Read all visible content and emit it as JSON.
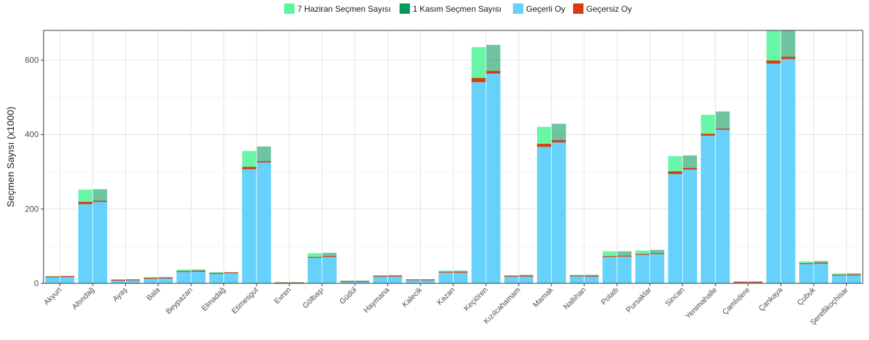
{
  "chart_data": {
    "type": "bar",
    "title": "",
    "xlabel": "",
    "ylabel": "Seçmen Sayısı (x1000)",
    "ylim": [
      0,
      680
    ],
    "yticks": [
      0,
      200,
      400,
      600
    ],
    "grid": true,
    "legend_position": "top",
    "legend": [
      {
        "label": "7 Haziran Seçmen Sayısı",
        "color": "#5cf5a0"
      },
      {
        "label": "1 Kasım Seçmen Sayısı",
        "color": "#059a5a"
      },
      {
        "label": "Geçerli Oy",
        "color": "#66d2fb"
      },
      {
        "label": "Geçersiz Oy",
        "color": "#d93b0f"
      }
    ],
    "categories": [
      "Akyurt",
      "Altındağ",
      "Ayaş",
      "Bala",
      "Beypazarı",
      "Elmadağ",
      "Etimesgut",
      "Evren",
      "Gölbaşı",
      "Güdül",
      "Haymana",
      "Kalecik",
      "Kazan",
      "Keçiören",
      "Kızılcahamam",
      "Mamak",
      "Nallıhan",
      "Polatlı",
      "Pursaklar",
      "Sincan",
      "Yenimahalle",
      "Çamlıdere",
      "Çankaya",
      "Çubuk",
      "Şereflikoçhisar"
    ],
    "series": [
      {
        "name": "7 Haziran Seçmen Sayısı",
        "values": [
          20,
          252,
          11,
          17,
          37,
          30,
          356,
          3,
          81,
          7,
          22,
          11,
          34,
          635,
          22,
          421,
          23,
          86,
          88,
          342,
          453,
          5,
          690,
          59,
          27
        ]
      },
      {
        "name": "7 Haziran Geçerli Oy",
        "values": [
          17,
          213,
          9,
          14,
          32,
          27,
          307,
          2,
          69,
          6,
          19,
          10,
          30,
          541,
          19,
          367,
          20,
          71,
          77,
          294,
          397,
          4,
          591,
          52,
          22
        ]
      },
      {
        "name": "7 Haziran Geçersiz Oy",
        "values": [
          1,
          6,
          0.5,
          0.5,
          1,
          1,
          6,
          0.2,
          2,
          0.3,
          1,
          0.5,
          1,
          11,
          1,
          8,
          1,
          2,
          2,
          7,
          5,
          0.2,
          8,
          2,
          1
        ]
      },
      {
        "name": "1 Kasım Seçmen Sayısı",
        "values": [
          20,
          253,
          11,
          17,
          37,
          30,
          368,
          3,
          82,
          7,
          22,
          11,
          34,
          641,
          23,
          429,
          23,
          86,
          90,
          344,
          462,
          5,
          700,
          60,
          27
        ]
      },
      {
        "name": "1 Kasım Geçerli Oy",
        "values": [
          18,
          219,
          10,
          15,
          33,
          29,
          325,
          2,
          72,
          6,
          20,
          10,
          30,
          564,
          20,
          379,
          20,
          73,
          80,
          306,
          413,
          4,
          603,
          54,
          23
        ]
      },
      {
        "name": "1 Kasım Geçersiz Oy",
        "values": [
          1,
          3,
          0.3,
          0.3,
          0.5,
          0.5,
          3,
          0.1,
          1,
          0.2,
          0.5,
          0.3,
          0.5,
          7,
          0.5,
          6,
          0.5,
          1,
          1,
          4,
          3,
          0.1,
          6,
          1,
          0.5
        ]
      }
    ]
  }
}
